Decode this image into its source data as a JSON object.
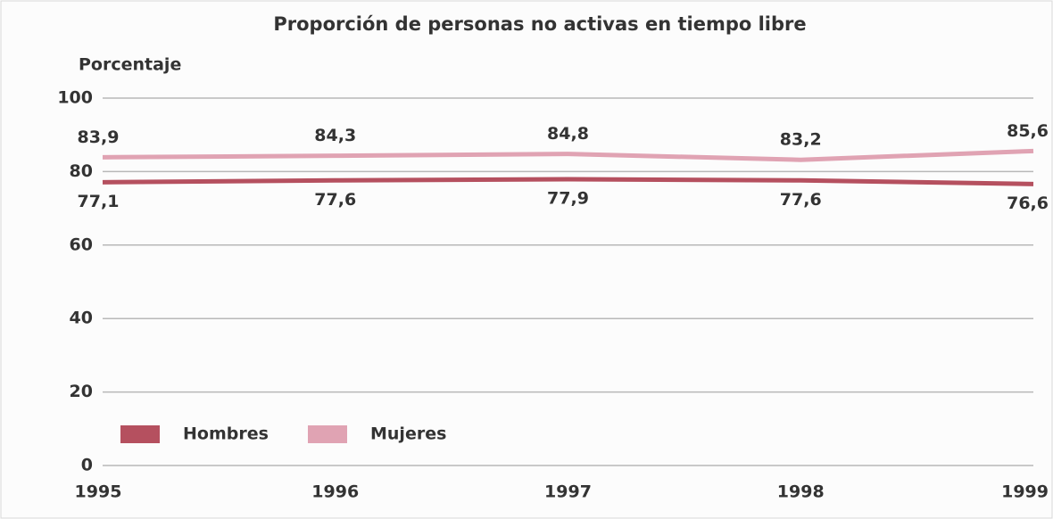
{
  "chart_data": {
    "type": "line",
    "title": "Proporción de personas no activas en tiempo libre",
    "ylabel": "Porcentaje",
    "x": [
      1995,
      1996,
      1997,
      1998,
      1999
    ],
    "xlim": [
      1995,
      1999
    ],
    "xticks": [
      1995,
      1996,
      1997,
      1998,
      1999
    ],
    "ylim": [
      0,
      100
    ],
    "yticks": [
      0,
      20,
      40,
      60,
      80,
      100
    ],
    "grid": true,
    "legend": "lower left",
    "series": [
      {
        "name": "Hombres",
        "color": "#b5505f",
        "values": [
          77.1,
          77.6,
          77.9,
          77.6,
          76.6
        ],
        "value_labels": [
          "77,1",
          "77,6",
          "77,9",
          "77,6",
          "76,6"
        ]
      },
      {
        "name": "Mujeres",
        "color": "#e0a3b3",
        "values": [
          83.9,
          84.3,
          84.8,
          83.2,
          85.6
        ],
        "value_labels": [
          "83,9",
          "84,3",
          "84,8",
          "83,2",
          "85,6"
        ]
      }
    ]
  }
}
